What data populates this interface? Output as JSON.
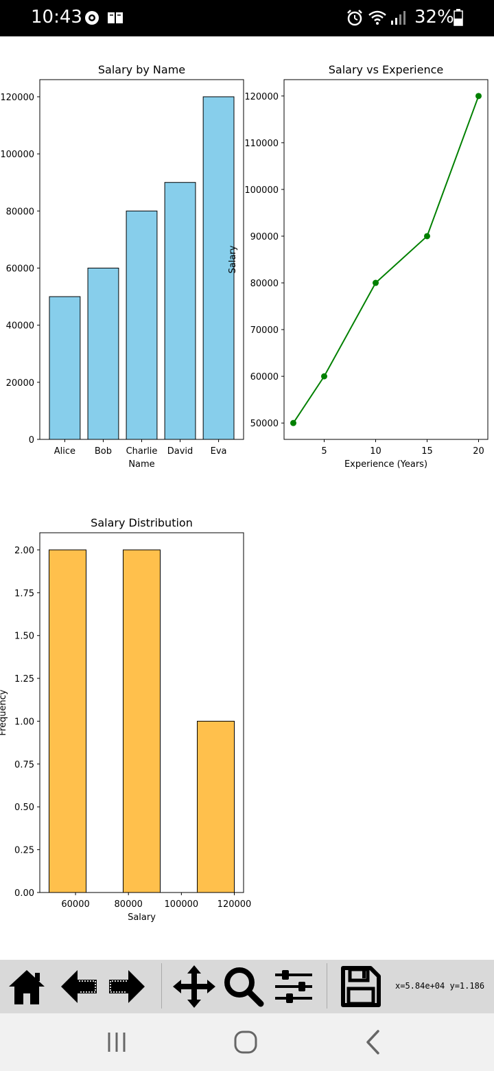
{
  "status_bar": {
    "time": "10:43",
    "battery": "32%",
    "left_icons": [
      "settings-gear-icon",
      "book-icon"
    ],
    "right_icons": [
      "alarm-icon",
      "wifi-icon",
      "signal-icon",
      "battery-icon"
    ]
  },
  "charts": [
    {
      "type": "bar",
      "title": "Salary by Name",
      "xlabel": "Name",
      "ylabel": "",
      "categories": [
        "Alice",
        "Bob",
        "Charlie",
        "David",
        "Eva"
      ],
      "values": [
        50000,
        60000,
        80000,
        90000,
        120000
      ],
      "yticks": [
        0,
        20000,
        40000,
        60000,
        80000,
        100000,
        120000
      ],
      "ylim": [
        0,
        126000
      ],
      "color": "#87ceeb"
    },
    {
      "type": "line",
      "title": "Salary vs Experience",
      "xlabel": "Experience (Years)",
      "ylabel": "Salary",
      "x": [
        2,
        5,
        10,
        15,
        20
      ],
      "y": [
        50000,
        60000,
        80000,
        90000,
        120000
      ],
      "xticks": [
        5,
        10,
        15,
        20
      ],
      "yticks": [
        50000,
        60000,
        70000,
        80000,
        90000,
        100000,
        110000,
        120000
      ],
      "xlim": [
        1.1,
        20.9
      ],
      "ylim": [
        46500,
        123500
      ],
      "color": "#008000"
    },
    {
      "type": "histogram",
      "title": "Salary Distribution",
      "xlabel": "Salary",
      "ylabel": "Frequency",
      "bins": [
        {
          "from": 50000,
          "to": 64000,
          "count": 2
        },
        {
          "from": 78000,
          "to": 92000,
          "count": 2
        },
        {
          "from": 106000,
          "to": 120000,
          "count": 1
        }
      ],
      "xticks": [
        60000,
        80000,
        100000,
        120000
      ],
      "yticks": [
        "0.00",
        "0.25",
        "0.50",
        "0.75",
        "1.00",
        "1.25",
        "1.50",
        "1.75",
        "2.00"
      ],
      "xlim": [
        46500,
        123500
      ],
      "ylim": [
        0,
        2.1
      ],
      "color": "#ffa500"
    }
  ],
  "chart_data": [
    {
      "type": "bar",
      "title": "Salary by Name",
      "xlabel": "Name",
      "ylabel": "",
      "categories": [
        "Alice",
        "Bob",
        "Charlie",
        "David",
        "Eva"
      ],
      "values": [
        50000,
        60000,
        80000,
        90000,
        120000
      ],
      "ylim": [
        0,
        126000
      ]
    },
    {
      "type": "line",
      "title": "Salary vs Experience",
      "xlabel": "Experience (Years)",
      "ylabel": "Salary",
      "x": [
        2,
        5,
        10,
        15,
        20
      ],
      "y": [
        50000,
        60000,
        80000,
        90000,
        120000
      ],
      "ylim": [
        46500,
        123500
      ]
    },
    {
      "type": "bar",
      "title": "Salary Distribution",
      "xlabel": "Salary",
      "ylabel": "Frequency",
      "categories": [
        "50000-64000",
        "78000-92000",
        "106000-120000"
      ],
      "values": [
        2,
        2,
        1
      ],
      "ylim": [
        0,
        2.1
      ]
    }
  ],
  "toolbar": {
    "buttons": [
      "home-icon",
      "back-arrow-icon",
      "forward-arrow-icon",
      "pan-icon",
      "zoom-icon",
      "configure-subplots-icon",
      "save-icon"
    ],
    "coordinates": "x=5.84e+04 y=1.186"
  },
  "nav_bar": {
    "buttons": [
      "recent-apps-icon",
      "home-button-icon",
      "back-icon"
    ]
  }
}
